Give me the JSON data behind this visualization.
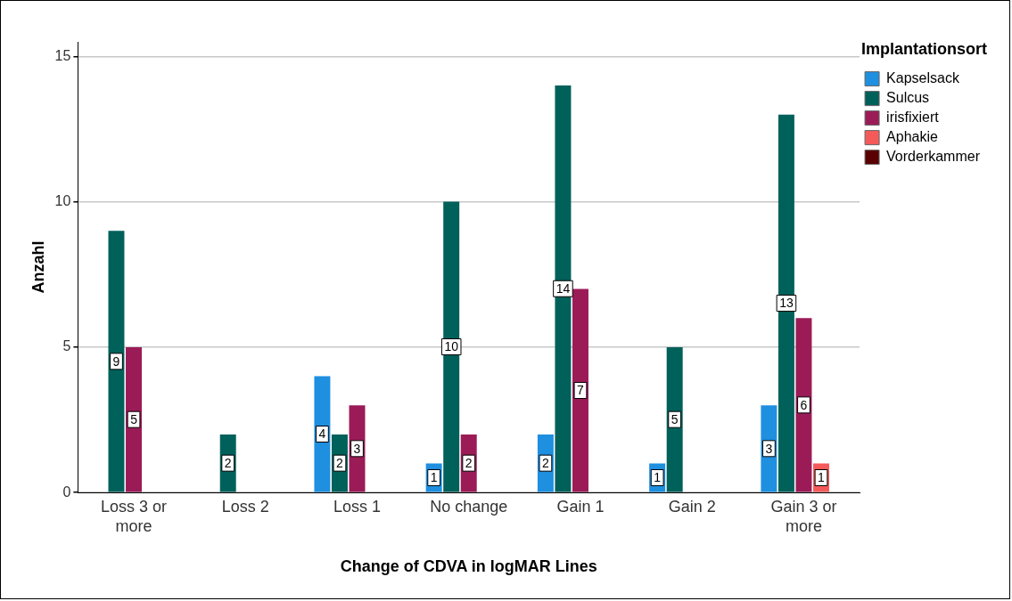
{
  "chart_data": {
    "type": "bar",
    "xlabel": "Change of CDVA in logMAR Lines",
    "ylabel": "Anzahl",
    "legend_title": "Implantationsort",
    "categories": [
      "Loss 3 or more",
      "Loss 2",
      "Loss 1",
      "No change",
      "Gain 1",
      "Gain 2",
      "Gain 3 or more"
    ],
    "series": [
      {
        "name": "Kapselsack",
        "color": "#1f8fe0",
        "values": [
          null,
          null,
          4,
          1,
          2,
          1,
          3
        ]
      },
      {
        "name": "Sulcus",
        "color": "#00605a",
        "values": [
          9,
          2,
          2,
          10,
          14,
          5,
          13
        ]
      },
      {
        "name": "irisfixiert",
        "color": "#9b1b57",
        "values": [
          5,
          null,
          3,
          2,
          7,
          null,
          6
        ]
      },
      {
        "name": "Aphakie",
        "color": "#f55a5a",
        "values": [
          null,
          null,
          null,
          null,
          null,
          null,
          1
        ]
      },
      {
        "name": "Vorderkammer",
        "color": "#5a0000",
        "values": [
          null,
          null,
          null,
          null,
          null,
          null,
          null
        ]
      }
    ],
    "ylim": [
      0,
      15.5
    ],
    "yticks": [
      0,
      5,
      10,
      15
    ],
    "grid": "y",
    "legend": "top right",
    "data_labels": true
  }
}
